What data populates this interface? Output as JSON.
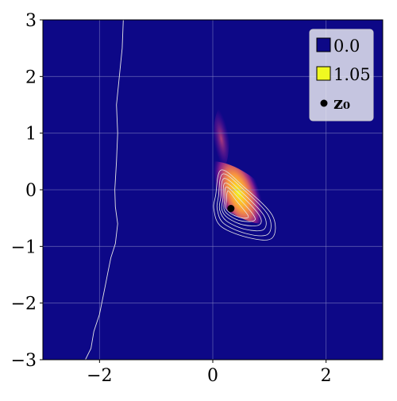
{
  "chart_data": {
    "type": "heatmap",
    "title": "",
    "xlabel": "",
    "ylabel": "",
    "xlim": [
      -3,
      3
    ],
    "ylim": [
      -3,
      3
    ],
    "grid": true,
    "x_ticks": [
      -2,
      0,
      2
    ],
    "y_ticks": [
      -3,
      -2,
      -1,
      0,
      1,
      2,
      3
    ],
    "x_tick_labels": [
      "−2",
      "0",
      "2"
    ],
    "y_tick_labels": [
      "−3",
      "−2",
      "−1",
      "0",
      "1",
      "2",
      "3"
    ],
    "colormap": "plasma",
    "color_range": [
      0.0,
      1.05
    ],
    "colors": {
      "low": "#0d0887",
      "high": "#f0f921",
      "contour": "#e6e6e6",
      "point": "#000000",
      "grid": "#8c8cc8"
    },
    "density_peak": {
      "x": 0.45,
      "y": -0.05,
      "value": 1.05
    },
    "boundary_line": [
      [
        -2.25,
        -3.0
      ],
      [
        -2.15,
        -2.8
      ],
      [
        -2.1,
        -2.5
      ],
      [
        -2.0,
        -2.2
      ],
      [
        -1.95,
        -1.95
      ],
      [
        -1.9,
        -1.7
      ],
      [
        -1.85,
        -1.45
      ],
      [
        -1.8,
        -1.2
      ],
      [
        -1.72,
        -0.95
      ],
      [
        -1.68,
        -0.6
      ],
      [
        -1.72,
        -0.3
      ],
      [
        -1.73,
        0.0
      ],
      [
        -1.7,
        0.5
      ],
      [
        -1.68,
        1.0
      ],
      [
        -1.7,
        1.5
      ],
      [
        -1.65,
        2.0
      ],
      [
        -1.6,
        2.5
      ],
      [
        -1.58,
        3.0
      ]
    ],
    "contours": [
      {
        "level": 1,
        "points": [
          [
            0.05,
            -0.1
          ],
          [
            0.15,
            0.35
          ],
          [
            0.55,
            0.05
          ],
          [
            1.05,
            -0.45
          ],
          [
            1.05,
            -0.85
          ],
          [
            0.65,
            -0.85
          ],
          [
            0.15,
            -0.65
          ],
          [
            0.02,
            -0.35
          ]
        ]
      },
      {
        "level": 2,
        "points": [
          [
            0.1,
            -0.12
          ],
          [
            0.18,
            0.28
          ],
          [
            0.55,
            0.0
          ],
          [
            0.98,
            -0.45
          ],
          [
            0.98,
            -0.78
          ],
          [
            0.62,
            -0.78
          ],
          [
            0.2,
            -0.6
          ],
          [
            0.08,
            -0.35
          ]
        ]
      },
      {
        "level": 3,
        "points": [
          [
            0.14,
            -0.14
          ],
          [
            0.2,
            0.2
          ],
          [
            0.52,
            -0.05
          ],
          [
            0.9,
            -0.45
          ],
          [
            0.9,
            -0.7
          ],
          [
            0.58,
            -0.7
          ],
          [
            0.24,
            -0.55
          ],
          [
            0.12,
            -0.35
          ]
        ]
      },
      {
        "level": 4,
        "points": [
          [
            0.18,
            -0.16
          ],
          [
            0.22,
            0.12
          ],
          [
            0.5,
            -0.1
          ],
          [
            0.82,
            -0.45
          ],
          [
            0.82,
            -0.62
          ],
          [
            0.54,
            -0.62
          ],
          [
            0.27,
            -0.5
          ],
          [
            0.16,
            -0.35
          ]
        ]
      },
      {
        "level": 5,
        "points": [
          [
            0.21,
            -0.18
          ],
          [
            0.24,
            0.05
          ],
          [
            0.46,
            -0.15
          ],
          [
            0.72,
            -0.45
          ],
          [
            0.72,
            -0.55
          ],
          [
            0.5,
            -0.55
          ],
          [
            0.3,
            -0.46
          ],
          [
            0.2,
            -0.35
          ]
        ]
      },
      {
        "level": 6,
        "points": [
          [
            0.24,
            -0.2
          ],
          [
            0.27,
            -0.02
          ],
          [
            0.42,
            -0.2
          ],
          [
            0.62,
            -0.45
          ],
          [
            0.58,
            -0.5
          ],
          [
            0.45,
            -0.48
          ],
          [
            0.32,
            -0.42
          ],
          [
            0.23,
            -0.33
          ]
        ]
      }
    ],
    "point": {
      "name": "z₀",
      "x": 0.32,
      "y": -0.33
    },
    "legend": {
      "position": "top-right",
      "entries": [
        {
          "label": "0.0",
          "color": "#0d0887",
          "kind": "swatch"
        },
        {
          "label": "1.05",
          "color": "#f0f921",
          "kind": "swatch"
        },
        {
          "label": "z₀",
          "color": "#000000",
          "kind": "point"
        }
      ]
    }
  }
}
